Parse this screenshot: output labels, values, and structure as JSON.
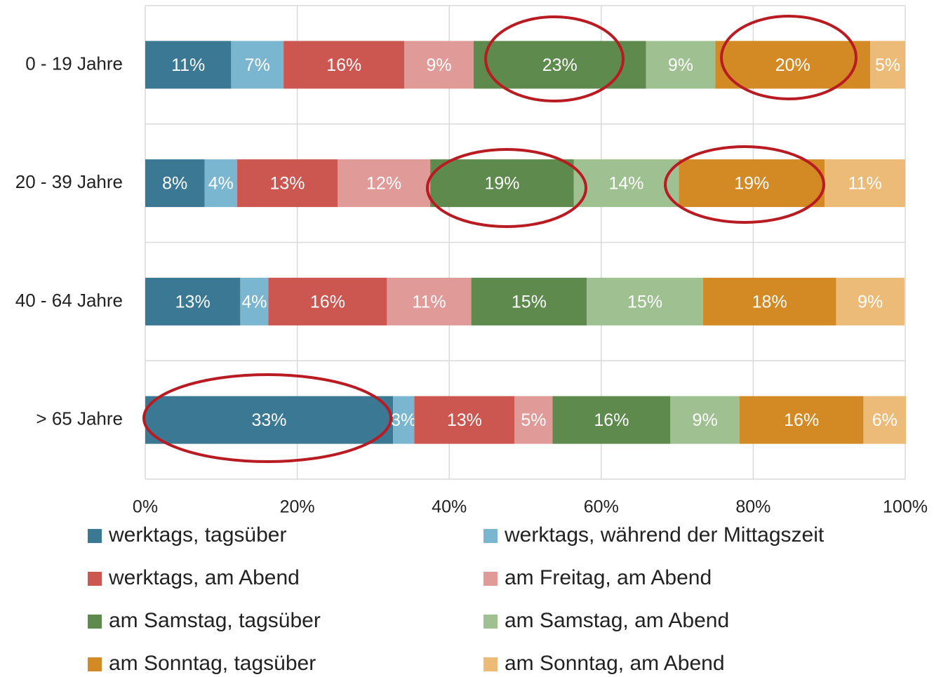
{
  "chart_data": {
    "type": "stacked_bar_horizontal",
    "categories": [
      "0 - 19 Jahre",
      "20 - 39 Jahre",
      "40 - 64 Jahre",
      "> 65 Jahre"
    ],
    "series": [
      {
        "name": "werktags, tagsüber",
        "color": "#3a7894",
        "values": [
          11.3,
          7.8,
          12.5,
          32.6
        ],
        "value_labels": [
          "11%",
          "8%",
          "13%",
          "33%"
        ]
      },
      {
        "name": "werktags, während der Mittagszeit",
        "color": "#7ab6d0",
        "values": [
          6.9,
          4.3,
          3.7,
          2.8
        ],
        "value_labels": [
          "7%",
          "4%",
          "4%",
          "3%"
        ]
      },
      {
        "name": "werktags, am Abend",
        "color": "#cc5750",
        "values": [
          15.9,
          13.2,
          15.6,
          13.2
        ],
        "value_labels": [
          "16%",
          "13%",
          "16%",
          "13%"
        ]
      },
      {
        "name": "am Freitag, am Abend",
        "color": "#e09a98",
        "values": [
          9.1,
          12.2,
          11.1,
          5.0
        ],
        "value_labels": [
          "9%",
          "12%",
          "11%",
          "5%"
        ]
      },
      {
        "name": "am Samstag, tagsüber",
        "color": "#5e8a4e",
        "values": [
          22.7,
          18.9,
          15.2,
          15.5
        ],
        "value_labels": [
          "23%",
          "19%",
          "15%",
          "16%"
        ]
      },
      {
        "name": "am Samstag, am Abend",
        "color": "#9fc090",
        "values": [
          9.1,
          13.8,
          15.3,
          9.1
        ],
        "value_labels": [
          "9%",
          "14%",
          "15%",
          "9%"
        ]
      },
      {
        "name": "am Sonntag, tagsüber",
        "color": "#d38a24",
        "values": [
          20.4,
          19.2,
          17.5,
          16.3
        ],
        "value_labels": [
          "20%",
          "19%",
          "18%",
          "16%"
        ]
      },
      {
        "name": "am Sonntag, am Abend",
        "color": "#ecbb78",
        "values": [
          4.6,
          10.6,
          9.0,
          5.6
        ],
        "value_labels": [
          "5%",
          "11%",
          "9%",
          "6%"
        ]
      }
    ],
    "xlim": [
      0,
      100
    ],
    "xticks": [
      {
        "value": 0,
        "label": "0%"
      },
      {
        "value": 20,
        "label": "20%"
      },
      {
        "value": 40,
        "label": "40%"
      },
      {
        "value": 60,
        "label": "60%"
      },
      {
        "value": 80,
        "label": "80%"
      },
      {
        "value": 100,
        "label": "100%"
      }
    ],
    "grid": true
  }
}
